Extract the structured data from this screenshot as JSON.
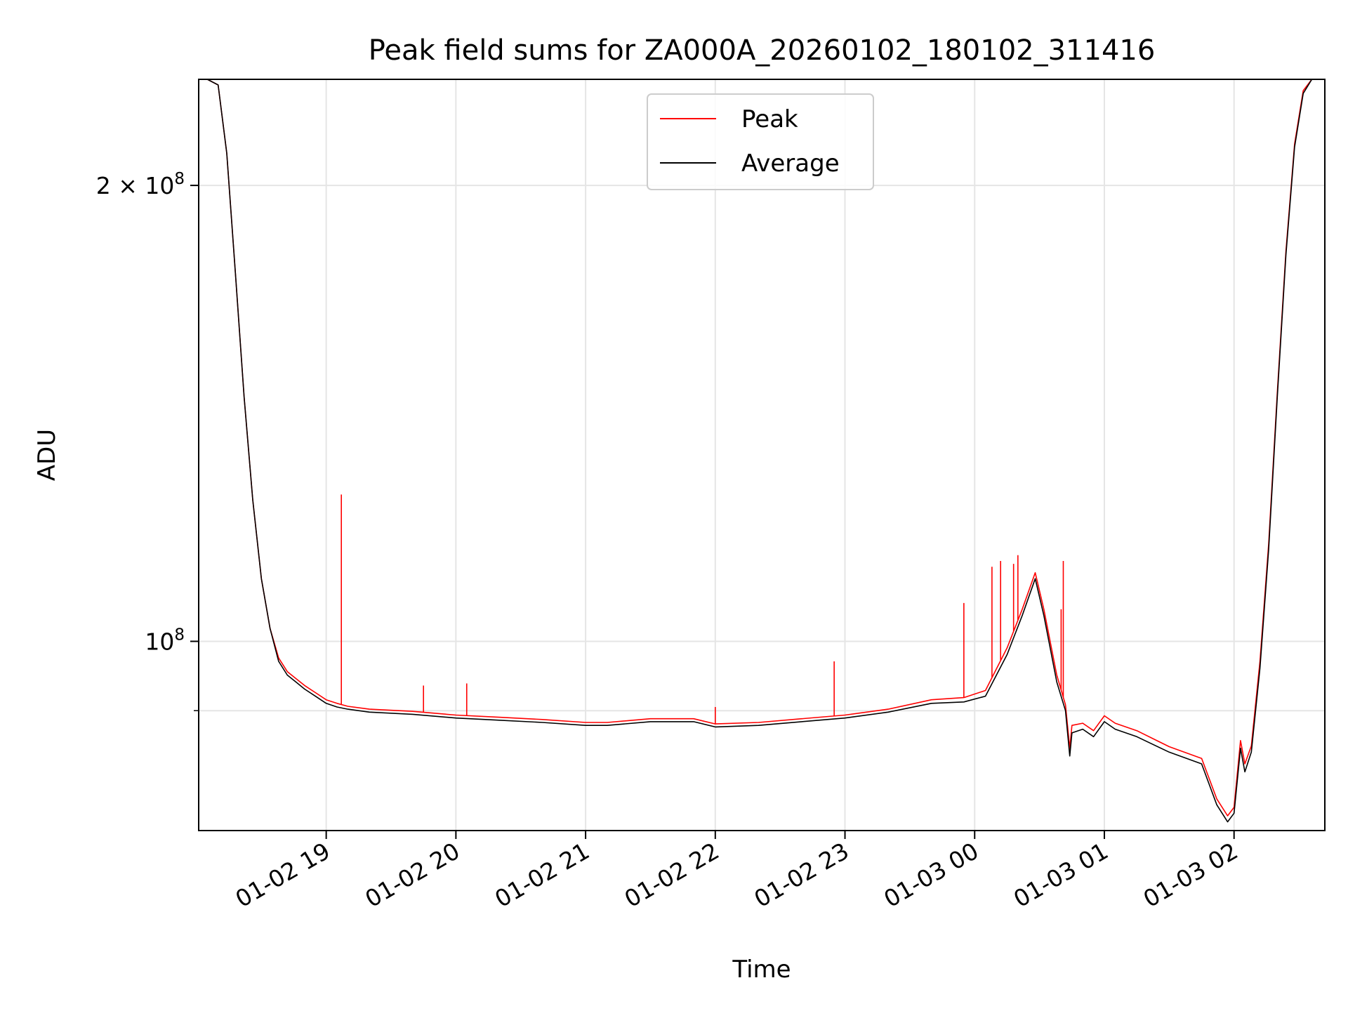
{
  "chart_data": {
    "type": "line",
    "title": "Peak field sums for ZA000A_20260102_180102_311416",
    "xlabel": "Time",
    "ylabel": "ADU",
    "x_axis_type": "datetime",
    "x_tick_labels": [
      "01-02 19",
      "01-02 20",
      "01-02 21",
      "01-02 22",
      "01-02 23",
      "01-03 00",
      "01-03 01",
      "01-03 02"
    ],
    "x_tick_times": [
      "2026-01-02 19:00",
      "2026-01-02 20:00",
      "2026-01-02 21:00",
      "2026-01-02 22:00",
      "2026-01-02 23:00",
      "2026-01-03 00:00",
      "2026-01-03 01:00",
      "2026-01-03 02:00"
    ],
    "xlim": [
      "2026-01-02 18:01",
      "2026-01-03 02:42"
    ],
    "y_scale": "log",
    "ylim": [
      75000000,
      235000000
    ],
    "y_tick_label_parts": [
      {
        "value": 200000000,
        "mant": "2",
        "times": "×",
        "base": "10",
        "exp": "8"
      },
      {
        "value": 100000000,
        "mant": "",
        "times": "",
        "base": "10",
        "exp": "8"
      }
    ],
    "y_minor_ticks": [
      90000000
    ],
    "grid": true,
    "legend_position": "upper center",
    "colors": {
      "peak": "#ff0000",
      "average": "#000000",
      "grid": "#e5e5e5"
    },
    "series": [
      {
        "name": "Average",
        "x": [
          "2026-01-02 18:01",
          "2026-01-02 18:05",
          "2026-01-02 18:10",
          "2026-01-02 18:14",
          "2026-01-02 18:18",
          "2026-01-02 18:22",
          "2026-01-02 18:26",
          "2026-01-02 18:30",
          "2026-01-02 18:34",
          "2026-01-02 18:38",
          "2026-01-02 18:42",
          "2026-01-02 18:46",
          "2026-01-02 18:50",
          "2026-01-02 18:55",
          "2026-01-02 19:00",
          "2026-01-02 19:05",
          "2026-01-02 19:10",
          "2026-01-02 19:20",
          "2026-01-02 19:40",
          "2026-01-02 20:00",
          "2026-01-02 20:20",
          "2026-01-02 20:40",
          "2026-01-02 21:00",
          "2026-01-02 21:10",
          "2026-01-02 21:30",
          "2026-01-02 21:50",
          "2026-01-02 22:00",
          "2026-01-02 22:20",
          "2026-01-02 22:40",
          "2026-01-02 23:00",
          "2026-01-02 23:20",
          "2026-01-02 23:40",
          "2026-01-02 23:55",
          "2026-01-03 00:05",
          "2026-01-03 00:15",
          "2026-01-03 00:22",
          "2026-01-03 00:28",
          "2026-01-03 00:32",
          "2026-01-03 00:38",
          "2026-01-03 00:42",
          "2026-01-03 00:44",
          "2026-01-03 00:45",
          "2026-01-03 00:50",
          "2026-01-03 00:55",
          "2026-01-03 01:00",
          "2026-01-03 01:05",
          "2026-01-03 01:15",
          "2026-01-03 01:30",
          "2026-01-03 01:45",
          "2026-01-03 01:52",
          "2026-01-03 01:57",
          "2026-01-03 02:00",
          "2026-01-03 02:03",
          "2026-01-03 02:05",
          "2026-01-03 02:08",
          "2026-01-03 02:12",
          "2026-01-03 02:16",
          "2026-01-03 02:20",
          "2026-01-03 02:24",
          "2026-01-03 02:28",
          "2026-01-03 02:32",
          "2026-01-03 02:36",
          "2026-01-03 02:40",
          "2026-01-03 02:42"
        ],
        "y": [
          235000000,
          235000000,
          233000000,
          210000000,
          175000000,
          145000000,
          124000000,
          110000000,
          102000000,
          97000000,
          95000000,
          94000000,
          93000000,
          92000000,
          91000000,
          90500000,
          90200000,
          89800000,
          89500000,
          89000000,
          88700000,
          88400000,
          88000000,
          88000000,
          88500000,
          88500000,
          87800000,
          88000000,
          88500000,
          89000000,
          89800000,
          91000000,
          91200000,
          92000000,
          98000000,
          104000000,
          110000000,
          104000000,
          94000000,
          90000000,
          84000000,
          87000000,
          87500000,
          86500000,
          88500000,
          87500000,
          86500000,
          84500000,
          83000000,
          78000000,
          76000000,
          77000000,
          85000000,
          82000000,
          84500000,
          96000000,
          115000000,
          145000000,
          180000000,
          212000000,
          230000000,
          235000000,
          235000000,
          235000000
        ]
      },
      {
        "name": "Peak",
        "x": [
          "2026-01-02 18:01",
          "2026-01-02 18:05",
          "2026-01-02 18:10",
          "2026-01-02 18:14",
          "2026-01-02 18:18",
          "2026-01-02 18:22",
          "2026-01-02 18:26",
          "2026-01-02 18:30",
          "2026-01-02 18:34",
          "2026-01-02 18:38",
          "2026-01-02 18:42",
          "2026-01-02 18:46",
          "2026-01-02 18:50",
          "2026-01-02 18:55",
          "2026-01-02 19:00",
          "2026-01-02 19:05",
          "2026-01-02 19:10",
          "2026-01-02 19:20",
          "2026-01-02 19:40",
          "2026-01-02 20:00",
          "2026-01-02 20:20",
          "2026-01-02 20:40",
          "2026-01-02 21:00",
          "2026-01-02 21:10",
          "2026-01-02 21:30",
          "2026-01-02 21:50",
          "2026-01-02 22:00",
          "2026-01-02 22:20",
          "2026-01-02 22:40",
          "2026-01-02 23:00",
          "2026-01-02 23:20",
          "2026-01-02 23:40",
          "2026-01-02 23:55",
          "2026-01-03 00:05",
          "2026-01-03 00:15",
          "2026-01-03 00:22",
          "2026-01-03 00:28",
          "2026-01-03 00:32",
          "2026-01-03 00:38",
          "2026-01-03 00:42",
          "2026-01-03 00:44",
          "2026-01-03 00:45",
          "2026-01-03 00:50",
          "2026-01-03 00:55",
          "2026-01-03 01:00",
          "2026-01-03 01:05",
          "2026-01-03 01:15",
          "2026-01-03 01:30",
          "2026-01-03 01:45",
          "2026-01-03 01:52",
          "2026-01-03 01:57",
          "2026-01-03 02:00",
          "2026-01-03 02:03",
          "2026-01-03 02:05",
          "2026-01-03 02:08",
          "2026-01-03 02:12",
          "2026-01-03 02:16",
          "2026-01-03 02:20",
          "2026-01-03 02:24",
          "2026-01-03 02:28",
          "2026-01-03 02:32",
          "2026-01-03 02:36",
          "2026-01-03 02:40",
          "2026-01-03 02:42"
        ],
        "y": [
          235000000,
          235000000,
          233000000,
          210000000,
          175000000,
          145000000,
          124000000,
          110000000,
          102000000,
          97500000,
          95500000,
          94500000,
          93500000,
          92500000,
          91500000,
          91000000,
          90600000,
          90200000,
          89900000,
          89400000,
          89100000,
          88800000,
          88400000,
          88400000,
          88900000,
          88900000,
          88200000,
          88400000,
          88900000,
          89400000,
          90200000,
          91500000,
          91800000,
          92800000,
          99000000,
          105000000,
          111000000,
          105000000,
          95000000,
          90800000,
          85000000,
          88000000,
          88300000,
          87300000,
          89300000,
          88300000,
          87300000,
          85200000,
          83700000,
          78700000,
          76700000,
          77700000,
          86000000,
          83000000,
          85300000,
          97000000,
          116000000,
          146000000,
          181000000,
          213000000,
          231000000,
          235000000,
          235000000,
          235000000
        ],
        "spikes": [
          {
            "x": "2026-01-02 19:07",
            "y": 125000000
          },
          {
            "x": "2026-01-02 19:45",
            "y": 93500000
          },
          {
            "x": "2026-01-02 20:05",
            "y": 93800000
          },
          {
            "x": "2026-01-02 22:00",
            "y": 90500000
          },
          {
            "x": "2026-01-02 22:55",
            "y": 97000000
          },
          {
            "x": "2026-01-02 23:55",
            "y": 106000000
          },
          {
            "x": "2026-01-03 00:08",
            "y": 112000000
          },
          {
            "x": "2026-01-03 00:12",
            "y": 113000000
          },
          {
            "x": "2026-01-03 00:18",
            "y": 112500000
          },
          {
            "x": "2026-01-03 00:20",
            "y": 114000000
          },
          {
            "x": "2026-01-03 00:40",
            "y": 105000000
          },
          {
            "x": "2026-01-03 00:41",
            "y": 113000000
          }
        ]
      }
    ]
  }
}
